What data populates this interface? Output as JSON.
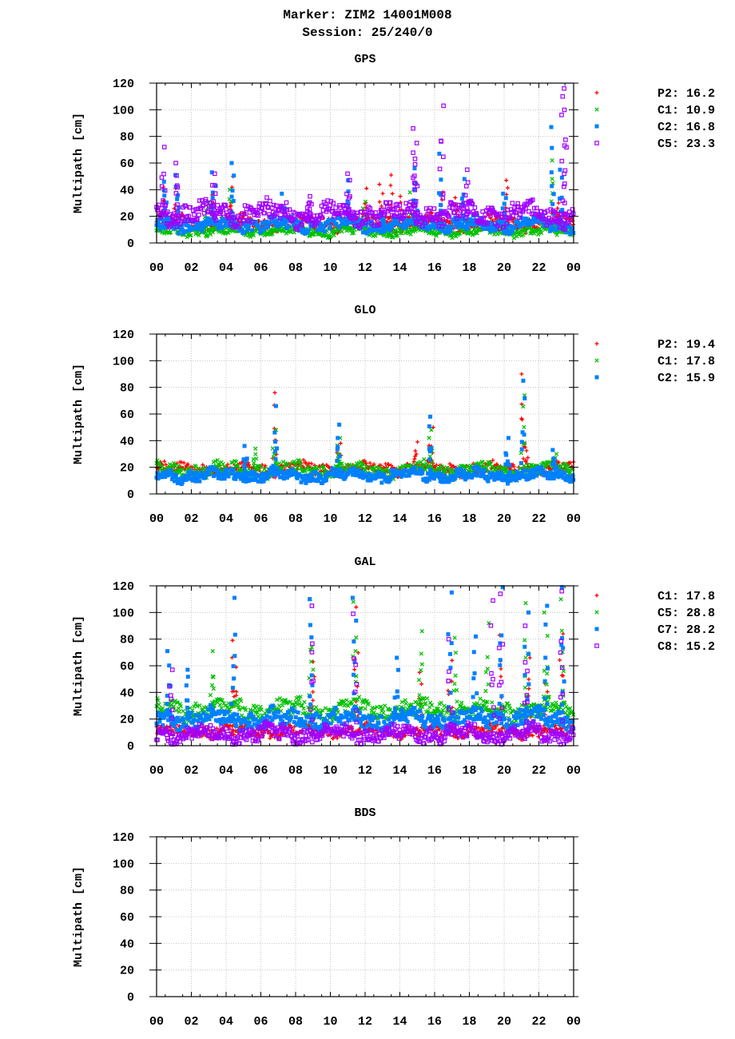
{
  "header": {
    "marker": "Marker: ZIM2 14001M008",
    "session": "Session: 25/240/0"
  },
  "chart_data": [
    {
      "type": "scatter",
      "title": "GPS",
      "ylabel": "Multipath [cm]",
      "ylim": [
        0,
        120
      ],
      "yticks": [
        "0",
        "20",
        "40",
        "60",
        "80",
        "100",
        "120"
      ],
      "xlim": [
        0,
        24
      ],
      "xticks": [
        "00",
        "02",
        "04",
        "06",
        "08",
        "10",
        "12",
        "14",
        "16",
        "18",
        "20",
        "22",
        "00"
      ],
      "grid": true,
      "legend_position": "right",
      "series": [
        {
          "name": "P2: 16.2",
          "marker": "plus",
          "color": "#ff0000",
          "base": 15,
          "spread": 6,
          "x": [
            0.4,
            1.1,
            3.2,
            4.3,
            12.1,
            12.9,
            13.5,
            14.1,
            16.4,
            17.3,
            20.1,
            23.1
          ],
          "y": [
            42,
            41,
            36,
            50,
            41,
            44,
            51,
            35,
            38,
            34,
            47,
            30
          ]
        },
        {
          "name": "C1: 10.9",
          "marker": "cross",
          "color": "#00c000",
          "base": 9,
          "spread": 4,
          "x": [
            2.9,
            4.3,
            12.0,
            14.7,
            22.7
          ],
          "y": [
            31,
            40,
            31,
            38,
            62
          ]
        },
        {
          "name": "C2: 16.8",
          "marker": "square",
          "color": "#0080ff",
          "base": 14,
          "spread": 6,
          "x": [
            0.5,
            1.2,
            3.3,
            4.4,
            7.3,
            11.0,
            13.0,
            14.9,
            16.3,
            17.7,
            20.0,
            22.8,
            23.3
          ],
          "y": [
            46,
            51,
            53,
            60,
            37,
            47,
            22,
            56,
            67,
            48,
            37,
            87,
            55
          ]
        },
        {
          "name": "C5: 23.3",
          "marker": "opensquare",
          "color": "#a000ff",
          "base": 22,
          "spread": 9,
          "x": [
            0.4,
            1.1,
            3.3,
            8.8,
            11.0,
            14.8,
            14.9,
            16.4,
            17.9,
            23.5,
            23.4
          ],
          "y": [
            72,
            60,
            52,
            35,
            52,
            86,
            75,
            103,
            55,
            116,
            110
          ]
        }
      ]
    },
    {
      "type": "scatter",
      "title": "GLO",
      "ylabel": "Multipath [cm]",
      "ylim": [
        0,
        120
      ],
      "yticks": [
        "0",
        "20",
        "40",
        "60",
        "80",
        "100",
        "120"
      ],
      "xlim": [
        0,
        24
      ],
      "xticks": [
        "00",
        "02",
        "04",
        "06",
        "08",
        "10",
        "12",
        "14",
        "16",
        "18",
        "20",
        "22",
        "00"
      ],
      "grid": true,
      "legend_position": "right",
      "series": [
        {
          "name": "P2: 19.4",
          "marker": "plus",
          "color": "#ff0000",
          "base": 19,
          "spread": 5,
          "x": [
            6.8,
            10.5,
            14.9,
            15.8,
            21.1,
            21.3
          ],
          "y": [
            76,
            38,
            39,
            50,
            90,
            35
          ]
        },
        {
          "name": "C1: 17.8",
          "marker": "cross",
          "color": "#00c000",
          "base": 18,
          "spread": 6,
          "x": [
            5.7,
            6.8,
            10.5,
            15.8,
            21.1,
            22.9
          ],
          "y": [
            34,
            48,
            42,
            48,
            74,
            30
          ]
        },
        {
          "name": "C2: 15.9",
          "marker": "square",
          "color": "#0080ff",
          "base": 14,
          "spread": 5,
          "x": [
            5.1,
            6.8,
            10.5,
            15.8,
            20.2,
            21.1,
            22.9
          ],
          "y": [
            36,
            66,
            52,
            58,
            42,
            85,
            33
          ]
        }
      ]
    },
    {
      "type": "scatter",
      "title": "GAL",
      "ylabel": "Multipath [cm]",
      "ylim": [
        0,
        120
      ],
      "yticks": [
        "0",
        "20",
        "40",
        "60",
        "80",
        "100",
        "120"
      ],
      "xlim": [
        0,
        24
      ],
      "xticks": [
        "00",
        "02",
        "04",
        "06",
        "08",
        "10",
        "12",
        "14",
        "16",
        "18",
        "20",
        "22",
        "00"
      ],
      "grid": true,
      "legend_position": "right",
      "series": [
        {
          "name": "C1: 17.8",
          "marker": "plus",
          "color": "#ff0000",
          "base": 11,
          "spread": 5,
          "x": [
            4.4,
            4.5,
            9.0,
            11.5,
            15.2,
            16.9,
            19.8,
            21.4,
            22.4,
            23.3
          ],
          "y": [
            79,
            59,
            63,
            104,
            55,
            64,
            83,
            66,
            47,
            84
          ]
        },
        {
          "name": "C5: 28.8",
          "marker": "cross",
          "color": "#00c000",
          "base": 27,
          "spread": 8,
          "x": [
            3.2,
            8.9,
            11.4,
            15.2,
            17.2,
            19.0,
            21.3,
            22.4,
            23.3
          ],
          "y": [
            71,
            110,
            108,
            86,
            81,
            92,
            107,
            100,
            110
          ]
        },
        {
          "name": "C7: 28.2",
          "marker": "square",
          "color": "#0080ff",
          "base": 20,
          "spread": 8,
          "x": [
            0.7,
            1.8,
            4.4,
            8.9,
            11.4,
            13.8,
            16.9,
            18.3,
            19.8,
            21.3,
            22.4,
            23.4
          ],
          "y": [
            71,
            57,
            111,
            110,
            111,
            66,
            115,
            82,
            119,
            100,
            105,
            119
          ]
        },
        {
          "name": "C8: 15.2",
          "marker": "opensquare",
          "color": "#a000ff",
          "base": 9,
          "spread": 7,
          "x": [
            0.8,
            8.9,
            11.4,
            16.9,
            19.3,
            19.8,
            21.3,
            23.3
          ],
          "y": [
            57,
            105,
            99,
            80,
            109,
            114,
            90,
            116
          ]
        }
      ]
    },
    {
      "type": "scatter",
      "title": "BDS",
      "ylabel": "Multipath [cm]",
      "ylim": [
        0,
        120
      ],
      "yticks": [
        "0",
        "20",
        "40",
        "60",
        "80",
        "100",
        "120"
      ],
      "xlim": [
        0,
        24
      ],
      "xticks": [
        "00",
        "02",
        "04",
        "06",
        "08",
        "10",
        "12",
        "14",
        "16",
        "18",
        "20",
        "22",
        "00"
      ],
      "grid": true,
      "series": []
    }
  ]
}
